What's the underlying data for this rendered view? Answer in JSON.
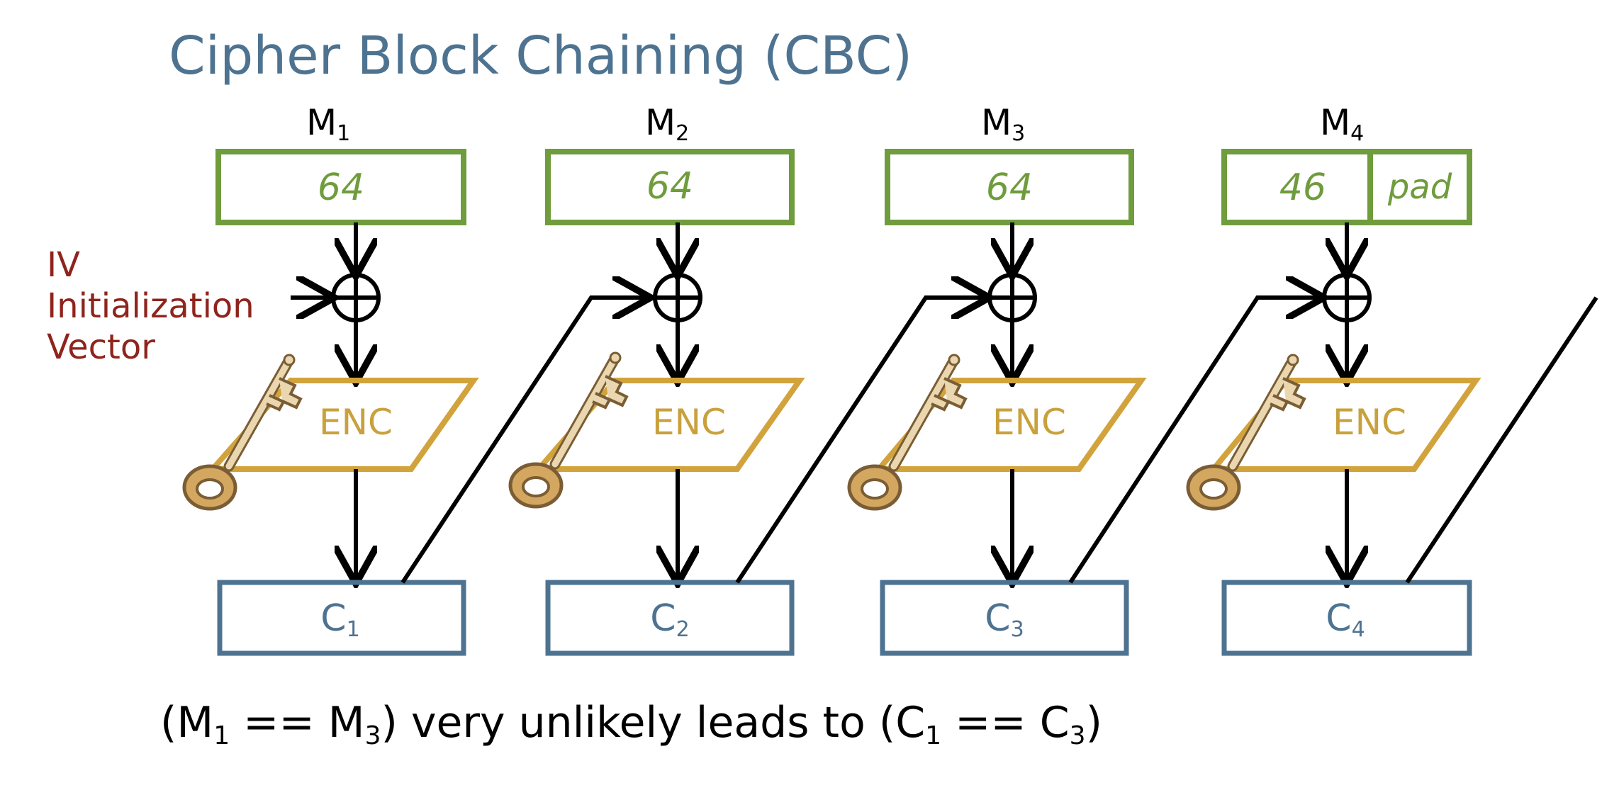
{
  "title": "Cipher Block Chaining (CBC)",
  "iv": {
    "abbr": "IV",
    "line1": "Initialization",
    "line2": "Vector"
  },
  "blocks": [
    {
      "msg": "M",
      "msg_sub": "1",
      "value": "64",
      "pad": "",
      "enc": "ENC",
      "cipher": "C",
      "cipher_sub": "1"
    },
    {
      "msg": "M",
      "msg_sub": "2",
      "value": "64",
      "pad": "",
      "enc": "ENC",
      "cipher": "C",
      "cipher_sub": "2"
    },
    {
      "msg": "M",
      "msg_sub": "3",
      "value": "64",
      "pad": "",
      "enc": "ENC",
      "cipher": "C",
      "cipher_sub": "3"
    },
    {
      "msg": "M",
      "msg_sub": "4",
      "value": "46",
      "pad": "pad",
      "enc": "ENC",
      "cipher": "C",
      "cipher_sub": "4"
    }
  ],
  "footer": {
    "open1": "(M",
    "sub1": "1",
    "eq1": " == M",
    "sub2": "3",
    "mid": ") very unlikely leads to (C",
    "sub3": "1",
    "eq2": " == C",
    "sub4": "3",
    "close": ")"
  },
  "colors": {
    "title": "#4e7391",
    "message": "#6f9c3c",
    "enc": "#d2a33c",
    "cipher": "#4e7391",
    "iv": "#8f241c"
  }
}
